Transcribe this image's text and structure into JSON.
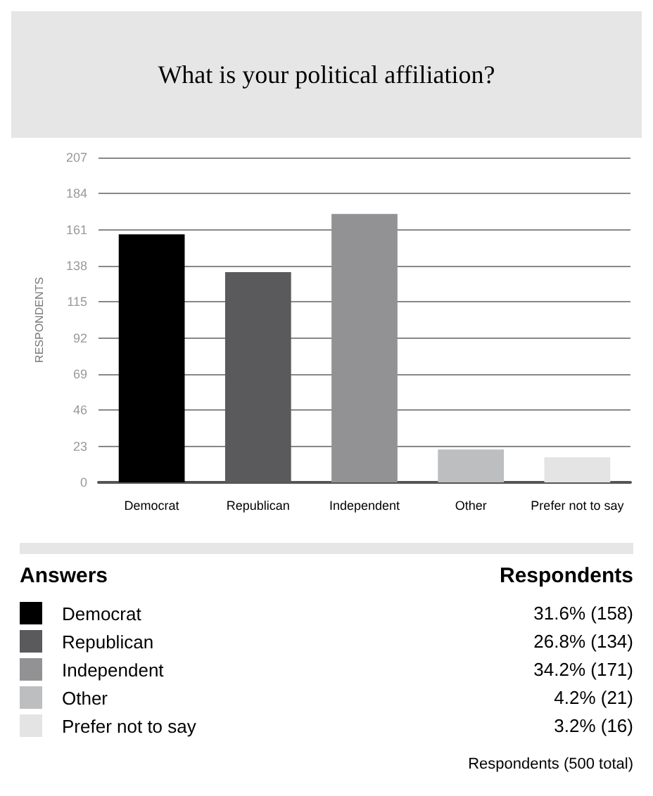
{
  "chart_data": {
    "type": "bar",
    "title": "What is your political affiliation?",
    "ylabel": "RESPONDENTS",
    "categories": [
      "Democrat",
      "Republican",
      "Independent",
      "Other",
      "Prefer not to say"
    ],
    "values": [
      158,
      134,
      171,
      21,
      16
    ],
    "colors": [
      "#000000",
      "#5a5a5c",
      "#929294",
      "#bdbebf",
      "#e4e4e5"
    ],
    "ylim": [
      0,
      207
    ],
    "yticks": [
      0,
      23,
      46,
      69,
      92,
      115,
      138,
      161,
      184,
      207
    ],
    "grid": "y",
    "annotations": [
      "Answers",
      "Respondents",
      "31.6% (158)",
      "26.8% (134)",
      "34.2% (171)",
      "4.2% (21)",
      "3.2% (16)",
      "Respondents (500 total)"
    ]
  }
}
